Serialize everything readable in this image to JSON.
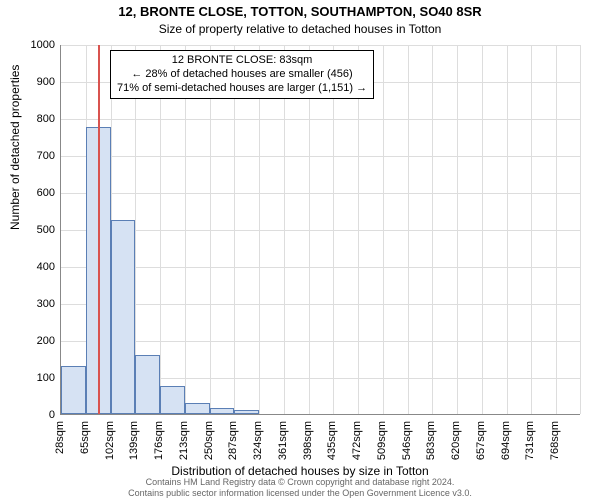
{
  "title_line1": "12, BRONTE CLOSE, TOTTON, SOUTHAMPTON, SO40 8SR",
  "title_line2": "Size of property relative to detached houses in Totton",
  "ylabel": "Number of detached properties",
  "xlabel": "Distribution of detached houses by size in Totton",
  "footer_line1": "Contains HM Land Registry data © Crown copyright and database right 2024.",
  "footer_line2": "Contains public sector information licensed under the Open Government Licence v3.0.",
  "annotation": {
    "line1": "12 BRONTE CLOSE: 83sqm",
    "line2": "← 28% of detached houses are smaller (456)",
    "line3": "71% of semi-detached houses are larger (1,151) →"
  },
  "chart": {
    "type": "histogram",
    "background_color": "#ffffff",
    "grid_color": "#dddddd",
    "axis_color": "#888888",
    "bar_fill": "#d6e2f3",
    "bar_border": "#5b7fb5",
    "marker_color": "#d9534f",
    "marker_value_sqm": 83,
    "ylim": [
      0,
      1000
    ],
    "ytick_step": 100,
    "x_start": 28,
    "x_step": 37,
    "x_unit": "sqm",
    "x_tick_count": 21,
    "bars": [
      130,
      775,
      525,
      160,
      75,
      30,
      15,
      10,
      0,
      0,
      0,
      0,
      0,
      0,
      0,
      0,
      0,
      0,
      0,
      0,
      0
    ],
    "tick_fontsize": 11,
    "label_fontsize": 12,
    "title_fontsize": 13,
    "footer_fontsize": 9,
    "footer_color": "#666666",
    "annotation_bg": "#ffffff",
    "annotation_border": "#000000"
  }
}
